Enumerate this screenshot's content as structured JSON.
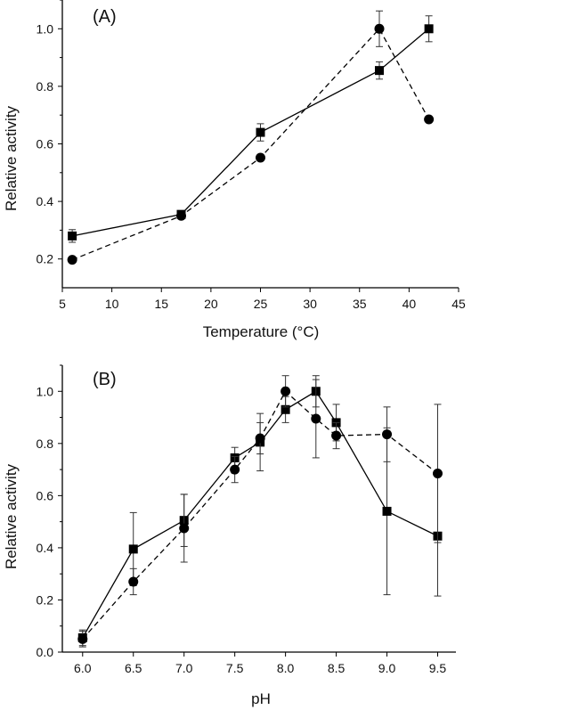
{
  "chart_data": [
    {
      "type": "line",
      "panel_label": "(A)",
      "xlabel": "Temperature (°C)",
      "ylabel": "Relative activity",
      "xlim": [
        5,
        45
      ],
      "ylim": [
        0.1,
        1.1
      ],
      "xticks": [
        5,
        10,
        15,
        20,
        25,
        30,
        35,
        40,
        45
      ],
      "xtick_labels": [
        "5",
        "10",
        "15",
        "20",
        "25",
        "30",
        "35",
        "40",
        "45"
      ],
      "yticks": [
        0.2,
        0.4,
        0.6,
        0.8,
        1.0
      ],
      "ytick_labels": [
        "0.2",
        "0.4",
        "0.6",
        "0.8",
        "1.0"
      ],
      "grid": false,
      "series": [
        {
          "name": "squares-solid",
          "marker": "square",
          "line": "solid",
          "x": [
            6,
            17,
            25,
            37,
            42
          ],
          "y": [
            0.28,
            0.355,
            0.64,
            0.855,
            1.0
          ],
          "err": [
            0.022,
            0.01,
            0.03,
            0.03,
            0.045
          ]
        },
        {
          "name": "circles-dashed",
          "marker": "circle",
          "line": "dashed",
          "x": [
            6,
            17,
            25,
            37,
            42
          ],
          "y": [
            0.197,
            0.35,
            0.552,
            1.0,
            0.685
          ],
          "err": [
            0.01,
            0.008,
            0.005,
            0.062,
            0.005
          ]
        }
      ]
    },
    {
      "type": "line",
      "panel_label": "(B)",
      "xlabel": "pH",
      "ylabel": "Relative activity",
      "xlim": [
        5.8,
        9.68
      ],
      "ylim": [
        0.0,
        1.1
      ],
      "xticks": [
        6.0,
        6.5,
        7.0,
        7.5,
        8.0,
        8.5,
        9.0,
        9.5
      ],
      "xtick_labels": [
        "6.0",
        "6.5",
        "7.0",
        "7.5",
        "8.0",
        "8.5",
        "9.0",
        "9.5"
      ],
      "yticks": [
        0.0,
        0.2,
        0.4,
        0.6,
        0.8,
        1.0
      ],
      "ytick_labels": [
        "0.0",
        "0.2",
        "0.4",
        "0.6",
        "0.8",
        "1.0"
      ],
      "grid": false,
      "series": [
        {
          "name": "squares-solid",
          "marker": "square",
          "line": "solid",
          "x": [
            6.0,
            6.5,
            7.0,
            7.5,
            7.75,
            8.0,
            8.3,
            8.5,
            9.0,
            9.5
          ],
          "y": [
            0.055,
            0.395,
            0.505,
            0.745,
            0.805,
            0.93,
            1.0,
            0.88,
            0.54,
            0.445
          ],
          "err": [
            0.03,
            0.14,
            0.1,
            0.04,
            0.11,
            0.05,
            0.06,
            0.07,
            0.32,
            0.23
          ]
        },
        {
          "name": "circles-dashed",
          "marker": "circle",
          "line": "dashed",
          "x": [
            6.0,
            6.5,
            7.0,
            7.5,
            7.75,
            8.0,
            8.3,
            8.5,
            9.0,
            9.5
          ],
          "y": [
            0.05,
            0.27,
            0.475,
            0.7,
            0.82,
            1.0,
            0.895,
            0.83,
            0.835,
            0.685
          ],
          "err": [
            0.03,
            0.05,
            0.13,
            0.05,
            0.06,
            0.06,
            0.15,
            0.05,
            0.105,
            0.265
          ]
        }
      ]
    }
  ]
}
